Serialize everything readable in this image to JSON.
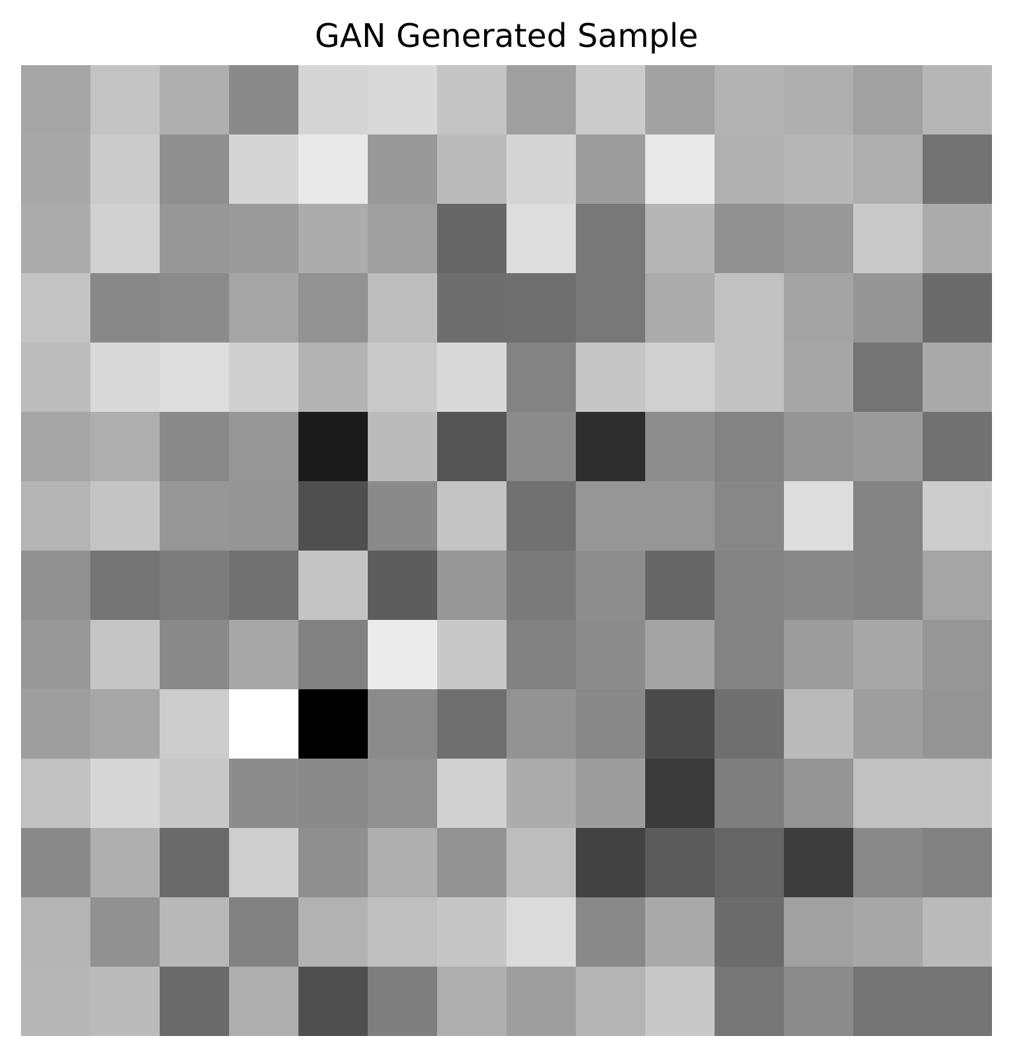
{
  "chart_data": {
    "type": "heatmap",
    "title": "GAN Generated Sample",
    "xlabel": "",
    "ylabel": "",
    "colormap": "gray",
    "axes_visible": false,
    "grid": false,
    "rows": 14,
    "cols": 14,
    "values": [
      [
        166,
        195,
        175,
        138,
        213,
        217,
        196,
        159,
        203,
        162,
        179,
        175,
        161,
        182
      ],
      [
        168,
        203,
        143,
        213,
        233,
        153,
        187,
        213,
        157,
        233,
        176,
        183,
        174,
        114
      ],
      [
        172,
        209,
        151,
        154,
        172,
        159,
        102,
        221,
        120,
        181,
        144,
        152,
        201,
        171
      ],
      [
        195,
        136,
        139,
        165,
        146,
        190,
        110,
        111,
        120,
        171,
        193,
        164,
        149,
        106
      ],
      [
        188,
        217,
        222,
        207,
        179,
        201,
        217,
        131,
        198,
        208,
        194,
        166,
        116,
        170
      ],
      [
        165,
        174,
        137,
        150,
        27,
        187,
        84,
        139,
        46,
        141,
        131,
        149,
        154,
        113
      ],
      [
        180,
        196,
        150,
        149,
        79,
        138,
        196,
        113,
        150,
        150,
        135,
        221,
        131,
        204
      ],
      [
        144,
        117,
        124,
        113,
        196,
        93,
        151,
        123,
        142,
        102,
        131,
        136,
        132,
        165
      ],
      [
        153,
        197,
        137,
        167,
        130,
        235,
        200,
        130,
        140,
        164,
        131,
        156,
        168,
        150
      ],
      [
        158,
        167,
        204,
        255,
        0,
        139,
        111,
        147,
        136,
        74,
        112,
        186,
        158,
        148
      ],
      [
        193,
        214,
        199,
        140,
        138,
        145,
        209,
        172,
        157,
        59,
        126,
        149,
        193,
        193
      ],
      [
        137,
        175,
        106,
        206,
        143,
        175,
        146,
        189,
        66,
        91,
        101,
        61,
        137,
        129
      ],
      [
        180,
        145,
        184,
        129,
        178,
        191,
        198,
        219,
        137,
        170,
        108,
        161,
        167,
        186
      ],
      [
        183,
        187,
        106,
        174,
        79,
        127,
        175,
        158,
        180,
        200,
        118,
        139,
        116,
        116
      ]
    ]
  }
}
